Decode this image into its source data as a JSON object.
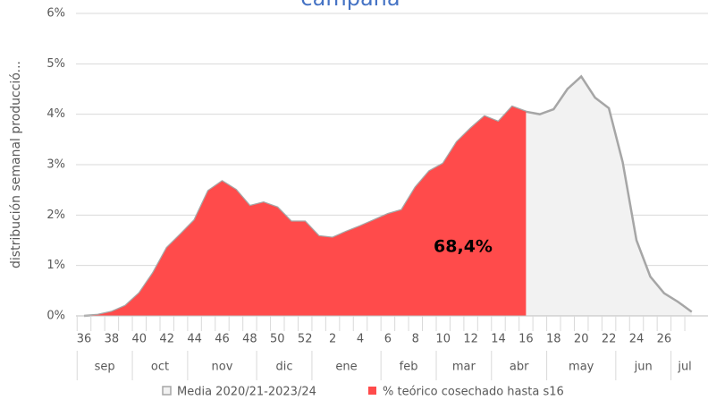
{
  "chart_data": {
    "type": "area",
    "title": "campaña",
    "y_axis_label": "distribución semanal producció...",
    "categories": [
      36,
      null,
      38,
      null,
      40,
      null,
      42,
      null,
      44,
      null,
      46,
      null,
      48,
      null,
      50,
      null,
      52,
      null,
      2,
      null,
      4,
      null,
      6,
      null,
      8,
      null,
      10,
      null,
      12,
      null,
      14,
      null,
      16,
      null,
      18,
      null,
      20,
      null,
      22,
      null,
      24,
      null,
      26,
      null,
      null
    ],
    "month_groups": [
      {
        "label": "sep",
        "weeks": 4
      },
      {
        "label": "oct",
        "weeks": 4
      },
      {
        "label": "nov",
        "weeks": 5
      },
      {
        "label": "dic",
        "weeks": 4
      },
      {
        "label": "ene",
        "weeks": 5
      },
      {
        "label": "feb",
        "weeks": 4
      },
      {
        "label": "mar",
        "weeks": 4
      },
      {
        "label": "abr",
        "weeks": 4
      },
      {
        "label": "may",
        "weeks": 5
      },
      {
        "label": "jun",
        "weeks": 4
      },
      {
        "label": "jul",
        "weeks": 2
      }
    ],
    "series": [
      {
        "name": "Media 2020/21-2023/24",
        "color": "#f2f2f2",
        "stroke": "#a6a6a6",
        "values": [
          0,
          0.02,
          0.08,
          0.2,
          0.45,
          0.85,
          1.35,
          1.62,
          1.9,
          2.48,
          2.67,
          2.5,
          2.18,
          2.25,
          2.15,
          1.87,
          1.87,
          1.58,
          1.55,
          1.67,
          1.78,
          1.9,
          2.02,
          2.1,
          2.55,
          2.87,
          3.02,
          3.45,
          3.72,
          3.96,
          3.85,
          4.15,
          4.05,
          4.0,
          4.1,
          4.5,
          4.75,
          4.33,
          4.12,
          3.05,
          1.5,
          0.78,
          0.45,
          0.28,
          0.08
        ]
      },
      {
        "name": "% teórico cosechado hasta s16",
        "color": "#ff4b4b",
        "values": [
          0,
          0.02,
          0.08,
          0.2,
          0.45,
          0.85,
          1.35,
          1.62,
          1.9,
          2.48,
          2.67,
          2.5,
          2.18,
          2.25,
          2.15,
          1.87,
          1.87,
          1.58,
          1.55,
          1.67,
          1.78,
          1.9,
          2.02,
          2.1,
          2.55,
          2.87,
          3.02,
          3.45,
          3.72,
          3.96,
          3.85,
          4.15,
          4.05,
          null,
          null,
          null,
          null,
          null,
          null,
          null,
          null,
          null,
          null,
          null,
          null
        ]
      }
    ],
    "annotation": "68,4%",
    "ylim": [
      0,
      6
    ],
    "yticks": [
      {
        "value": 0,
        "label": "0%"
      },
      {
        "value": 1,
        "label": "1%"
      },
      {
        "value": 2,
        "label": "2%"
      },
      {
        "value": 3,
        "label": "3%"
      },
      {
        "value": 4,
        "label": "4%"
      },
      {
        "value": 5,
        "label": "5%"
      },
      {
        "value": 6,
        "label": "6%"
      }
    ],
    "grid": true
  }
}
